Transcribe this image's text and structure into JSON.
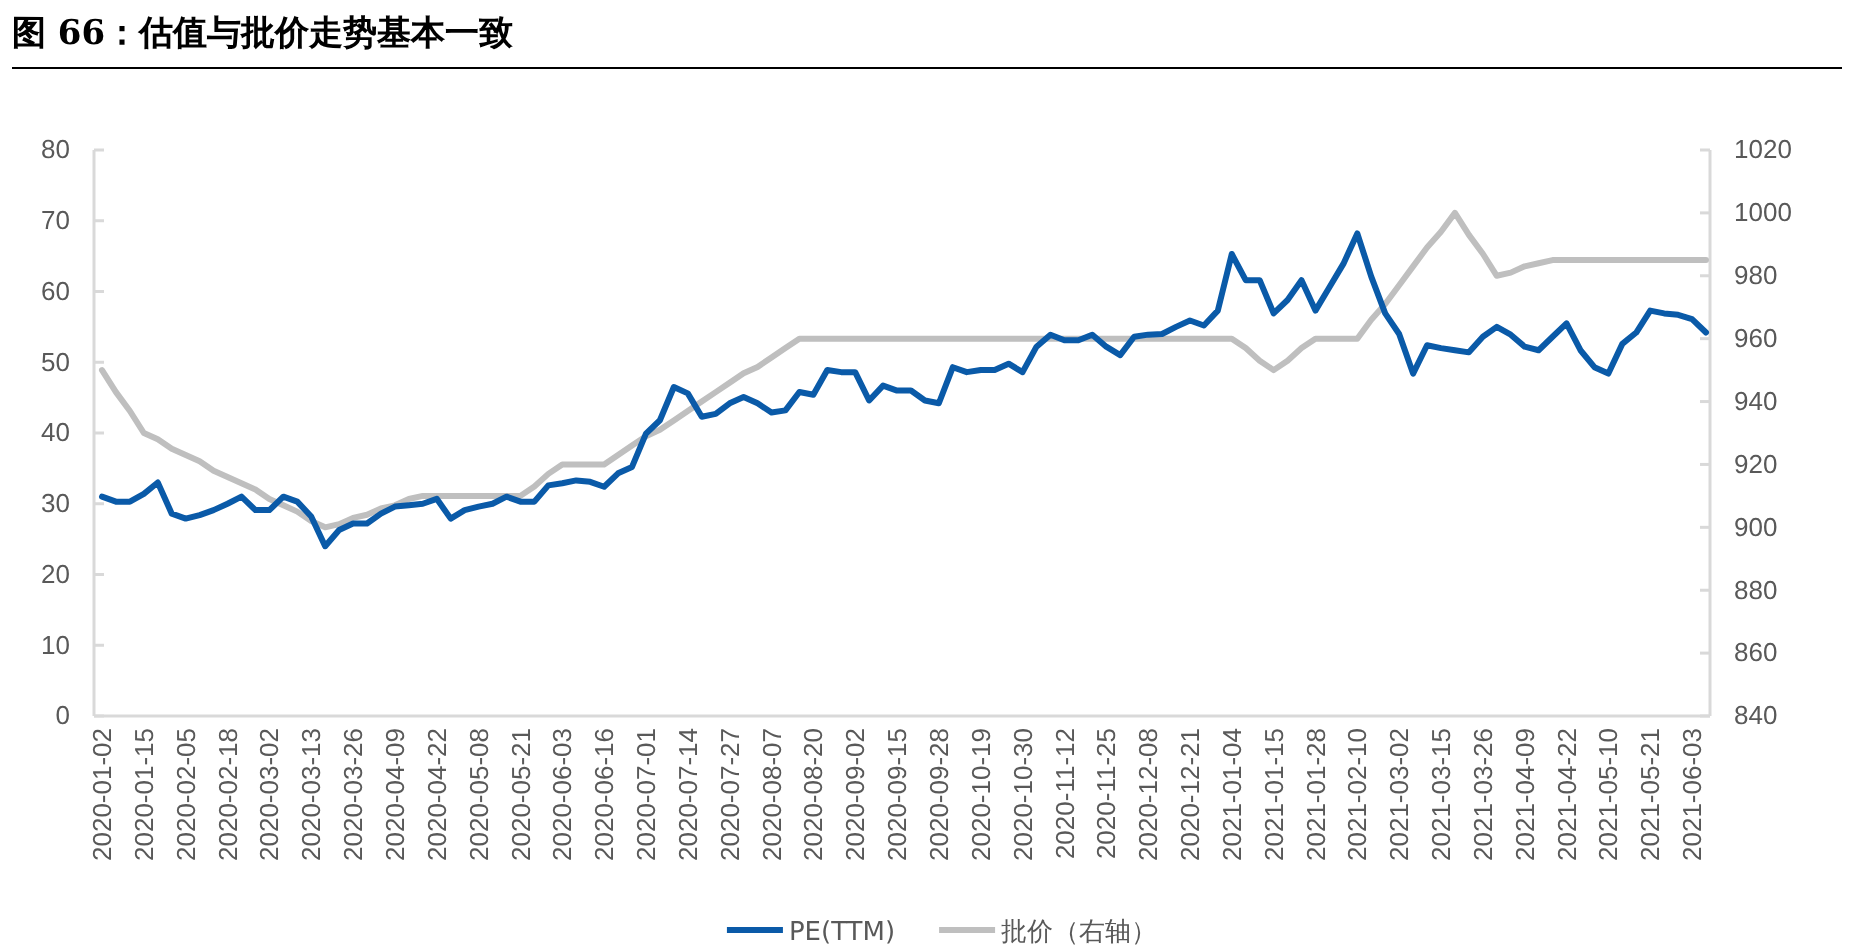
{
  "chart_data": {
    "type": "line",
    "title": "图 66：估值与批价走势基本一致",
    "categories": [
      "2020-01-02",
      null,
      null,
      "2020-01-15",
      null,
      null,
      "2020-02-05",
      null,
      null,
      "2020-02-18",
      null,
      null,
      "2020-03-02",
      null,
      null,
      "2020-03-13",
      null,
      null,
      "2020-03-26",
      null,
      null,
      "2020-04-09",
      null,
      null,
      "2020-04-22",
      null,
      null,
      "2020-05-08",
      null,
      null,
      "2020-05-21",
      null,
      null,
      "2020-06-03",
      null,
      null,
      "2020-06-16",
      null,
      null,
      "2020-07-01",
      null,
      null,
      "2020-07-14",
      null,
      null,
      "2020-07-27",
      null,
      null,
      "2020-08-07",
      null,
      null,
      "2020-08-20",
      null,
      null,
      "2020-09-02",
      null,
      null,
      "2020-09-15",
      null,
      null,
      "2020-09-28",
      null,
      null,
      "2020-10-19",
      null,
      null,
      "2020-10-30",
      null,
      null,
      "2020-11-12",
      null,
      null,
      "2020-11-25",
      null,
      null,
      "2020-12-08",
      null,
      null,
      "2020-12-21",
      null,
      null,
      "2021-01-04",
      null,
      null,
      "2021-01-15",
      null,
      null,
      "2021-01-28",
      null,
      null,
      "2021-02-10",
      null,
      null,
      "2021-03-02",
      null,
      null,
      "2021-03-15",
      null,
      null,
      "2021-03-26",
      null,
      null,
      "2021-04-09",
      null,
      null,
      "2021-04-22",
      null,
      null,
      "2021-05-10",
      null,
      null,
      "2021-05-21",
      null,
      null,
      "2021-06-03",
      null
    ],
    "series": [
      {
        "name": "PE(TTM)",
        "color": "#0a5aa8",
        "values": [
          31,
          30.3,
          30.3,
          31.4,
          33,
          28.6,
          27.9,
          28.4,
          29.1,
          30,
          31,
          29.1,
          29.1,
          31,
          30.3,
          28.2,
          24,
          26.3,
          27.2,
          27.2,
          28.6,
          29.6,
          29.8,
          30,
          30.7,
          27.9,
          29.1,
          29.6,
          30,
          31,
          30.3,
          30.3,
          32.6,
          32.9,
          33.3,
          33.1,
          32.4,
          34.3,
          35.2,
          39.9,
          41.8,
          46.5,
          45.6,
          42.3,
          42.7,
          44.2,
          45.1,
          44.2,
          42.9,
          43.2,
          45.8,
          45.4,
          48.9,
          48.6,
          48.6,
          44.6,
          46.7,
          46,
          46,
          44.6,
          44.2,
          49.3,
          48.6,
          48.9,
          48.9,
          49.8,
          48.6,
          52.2,
          53.9,
          53.1,
          53.1,
          53.9,
          52.2,
          51,
          53.6,
          53.9,
          54,
          55,
          55.9,
          55.2,
          57.3,
          65.3,
          61.6,
          61.6,
          56.9,
          58.8,
          61.6,
          57.3,
          60.6,
          63.9,
          68.2,
          62.1,
          56.9,
          54,
          48.4,
          52.4,
          52,
          51.7,
          51.4,
          53.6,
          55,
          53.9,
          52.2,
          51.7,
          53.6,
          55.5,
          51.7,
          49.3,
          48.4,
          52.6,
          54.2,
          57.3,
          56.9,
          56.7,
          56.1,
          54.2
        ]
      },
      {
        "name": "批价（右轴）",
        "color": "#bfbfbf",
        "axis": "y2",
        "values": [
          950,
          943,
          937,
          930,
          928,
          925,
          923,
          921,
          918,
          916,
          914,
          912,
          909,
          907,
          905,
          902,
          900,
          901,
          903,
          904,
          906,
          907,
          909,
          910,
          910,
          910,
          910,
          910,
          910,
          910,
          910,
          913,
          917,
          920,
          920,
          920,
          920,
          923,
          926,
          929,
          931,
          934,
          937,
          940,
          943,
          946,
          949,
          951,
          954,
          957,
          960,
          960,
          960,
          960,
          960,
          960,
          960,
          960,
          960,
          960,
          960,
          960,
          960,
          960,
          960,
          960,
          960,
          960,
          960,
          960,
          960,
          960,
          960,
          960,
          960,
          960,
          960,
          960,
          960,
          960,
          960,
          960,
          957,
          953,
          950,
          953,
          957,
          960,
          960,
          960,
          960,
          966,
          971,
          977,
          983,
          989,
          994,
          1000,
          993,
          987,
          980,
          981,
          983,
          984,
          985,
          985,
          985,
          985,
          985,
          985,
          985,
          985,
          985,
          985,
          985,
          985
        ]
      }
    ],
    "ylim": [
      0,
      80
    ],
    "yticks": [
      0,
      10,
      20,
      30,
      40,
      50,
      60,
      70,
      80
    ],
    "y2lim": [
      840,
      1020
    ],
    "y2ticks": [
      840,
      860,
      880,
      900,
      920,
      940,
      960,
      980,
      1000,
      1020
    ],
    "legend": "bottom"
  }
}
